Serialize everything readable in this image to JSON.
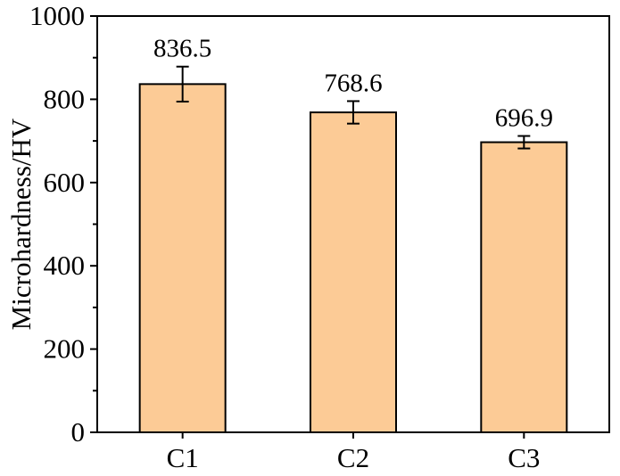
{
  "chart_data": {
    "type": "bar",
    "categories": [
      "C1",
      "C2",
      "C3"
    ],
    "values": [
      836.5,
      768.6,
      696.9
    ],
    "error_bars": [
      42,
      27,
      15
    ],
    "data_labels": [
      "836.5",
      "768.6",
      "696.9"
    ],
    "xlabel": "",
    "ylabel": "Microhardness/HV",
    "ylim": [
      0,
      1000
    ],
    "yticks": [
      0,
      200,
      400,
      600,
      800,
      1000
    ],
    "ytick_labels": [
      "0",
      "200",
      "400",
      "600",
      "800",
      "1000"
    ],
    "grid": false,
    "colors": {
      "bar_fill": "#FCCB96",
      "bar_stroke": "#000000",
      "axis": "#000000",
      "text": "#000000"
    }
  }
}
